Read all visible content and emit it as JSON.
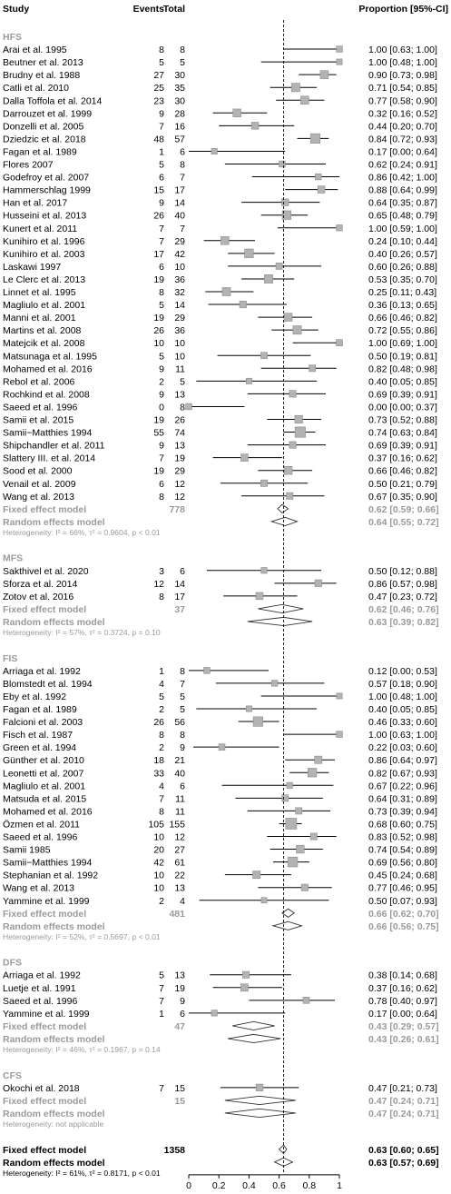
{
  "chart_data": {
    "type": "forest",
    "headers": {
      "study": "Study",
      "events": "Events",
      "total": "Total",
      "estimate": "Proportion [95%-CI]"
    },
    "xaxis": {
      "ticks": [
        "0",
        "0.2",
        "0.4",
        "0.6",
        "0.8",
        "1"
      ],
      "range": [
        0,
        1
      ],
      "reference_line": 0.63
    },
    "groups": [
      {
        "name": "HFS",
        "studies": [
          {
            "study": "Arai et al. 1995",
            "events": "8",
            "total": "8",
            "est": 1.0,
            "lo": 0.63,
            "hi": 1.0,
            "ci": "1.00 [0.63; 1.00]"
          },
          {
            "study": "Beutner et al. 2013",
            "events": "5",
            "total": "5",
            "est": 1.0,
            "lo": 0.48,
            "hi": 1.0,
            "ci": "1.00 [0.48; 1.00]"
          },
          {
            "study": "Brudny et al. 1988",
            "events": "27",
            "total": "30",
            "est": 0.9,
            "lo": 0.73,
            "hi": 0.98,
            "ci": "0.90 [0.73; 0.98]"
          },
          {
            "study": "Catli et al. 2010",
            "events": "25",
            "total": "35",
            "est": 0.71,
            "lo": 0.54,
            "hi": 0.85,
            "ci": "0.71 [0.54; 0.85]"
          },
          {
            "study": "Dalla Toffola et al. 2014",
            "events": "23",
            "total": "30",
            "est": 0.77,
            "lo": 0.58,
            "hi": 0.9,
            "ci": "0.77 [0.58; 0.90]"
          },
          {
            "study": "Darrouzet et al. 1999",
            "events": "9",
            "total": "28",
            "est": 0.32,
            "lo": 0.16,
            "hi": 0.52,
            "ci": "0.32 [0.16; 0.52]"
          },
          {
            "study": "Donzelli et al.  2005",
            "events": "7",
            "total": "16",
            "est": 0.44,
            "lo": 0.2,
            "hi": 0.7,
            "ci": "0.44 [0.20; 0.70]"
          },
          {
            "study": "Dziedzic et al. 2018",
            "events": "48",
            "total": "57",
            "est": 0.84,
            "lo": 0.72,
            "hi": 0.93,
            "ci": "0.84 [0.72; 0.93]"
          },
          {
            "study": "Fagan et al. 1989",
            "events": "1",
            "total": "6",
            "est": 0.17,
            "lo": 0.0,
            "hi": 0.64,
            "ci": "0.17 [0.00; 0.64]"
          },
          {
            "study": "Flores 2007",
            "events": "5",
            "total": "8",
            "est": 0.62,
            "lo": 0.24,
            "hi": 0.91,
            "ci": "0.62 [0.24; 0.91]"
          },
          {
            "study": "Godefroy et al. 2007",
            "events": "6",
            "total": "7",
            "est": 0.86,
            "lo": 0.42,
            "hi": 1.0,
            "ci": "0.86 [0.42; 1.00]"
          },
          {
            "study": "Hammerschlag 1999",
            "events": "15",
            "total": "17",
            "est": 0.88,
            "lo": 0.64,
            "hi": 0.99,
            "ci": "0.88 [0.64; 0.99]"
          },
          {
            "study": "Han et al. 2017",
            "events": "9",
            "total": "14",
            "est": 0.64,
            "lo": 0.35,
            "hi": 0.87,
            "ci": "0.64 [0.35; 0.87]"
          },
          {
            "study": "Husseini et al. 2013",
            "events": "26",
            "total": "40",
            "est": 0.65,
            "lo": 0.48,
            "hi": 0.79,
            "ci": "0.65 [0.48; 0.79]"
          },
          {
            "study": "Kunert et al. 2011",
            "events": "7",
            "total": "7",
            "est": 1.0,
            "lo": 0.59,
            "hi": 1.0,
            "ci": "1.00 [0.59; 1.00]"
          },
          {
            "study": "Kunihiro et al. 1996",
            "events": "7",
            "total": "29",
            "est": 0.24,
            "lo": 0.1,
            "hi": 0.44,
            "ci": "0.24 [0.10; 0.44]"
          },
          {
            "study": "Kunihiro et al. 2003",
            "events": "17",
            "total": "42",
            "est": 0.4,
            "lo": 0.26,
            "hi": 0.57,
            "ci": "0.40 [0.26; 0.57]"
          },
          {
            "study": "Laskawi       1997",
            "events": "6",
            "total": "10",
            "est": 0.6,
            "lo": 0.26,
            "hi": 0.88,
            "ci": "0.60 [0.26; 0.88]"
          },
          {
            "study": "Le Clerc et al. 2013",
            "events": "19",
            "total": "36",
            "est": 0.53,
            "lo": 0.35,
            "hi": 0.7,
            "ci": "0.53 [0.35; 0.70]"
          },
          {
            "study": "Linnet et al. 1995",
            "events": "8",
            "total": "32",
            "est": 0.25,
            "lo": 0.11,
            "hi": 0.43,
            "ci": "0.25 [0.11; 0.43]"
          },
          {
            "study": "Magliulo et al. 2001",
            "events": "5",
            "total": "14",
            "est": 0.36,
            "lo": 0.13,
            "hi": 0.65,
            "ci": "0.36 [0.13; 0.65]"
          },
          {
            "study": "Manni et al. 2001",
            "events": "19",
            "total": "29",
            "est": 0.66,
            "lo": 0.46,
            "hi": 0.82,
            "ci": "0.66 [0.46; 0.82]"
          },
          {
            "study": "Martins et al. 2008",
            "events": "26",
            "total": "36",
            "est": 0.72,
            "lo": 0.55,
            "hi": 0.86,
            "ci": "0.72 [0.55; 0.86]"
          },
          {
            "study": "Matejcik et al. 2008",
            "events": "10",
            "total": "10",
            "est": 1.0,
            "lo": 0.69,
            "hi": 1.0,
            "ci": "1.00 [0.69; 1.00]"
          },
          {
            "study": "Matsunaga et al. 1995",
            "events": "5",
            "total": "10",
            "est": 0.5,
            "lo": 0.19,
            "hi": 0.81,
            "ci": "0.50 [0.19; 0.81]"
          },
          {
            "study": "Mohamed et al. 2016",
            "events": "9",
            "total": "11",
            "est": 0.82,
            "lo": 0.48,
            "hi": 0.98,
            "ci": "0.82 [0.48; 0.98]"
          },
          {
            "study": "Rebol et al. 2006",
            "events": "2",
            "total": "5",
            "est": 0.4,
            "lo": 0.05,
            "hi": 0.85,
            "ci": "0.40 [0.05; 0.85]"
          },
          {
            "study": "Rochkind et al. 2008",
            "events": "9",
            "total": "13",
            "est": 0.69,
            "lo": 0.39,
            "hi": 0.91,
            "ci": "0.69 [0.39; 0.91]"
          },
          {
            "study": "Saeed et al. 1996",
            "events": "0",
            "total": "8",
            "est": 0.0,
            "lo": 0.0,
            "hi": 0.37,
            "ci": "0.00 [0.00; 0.37]"
          },
          {
            "study": "Samii et al. 2015",
            "events": "19",
            "total": "26",
            "est": 0.73,
            "lo": 0.52,
            "hi": 0.88,
            "ci": "0.73 [0.52; 0.88]"
          },
          {
            "study": "Samii−Matthies 1994",
            "events": "55",
            "total": "74",
            "est": 0.74,
            "lo": 0.63,
            "hi": 0.84,
            "ci": "0.74 [0.63; 0.84]"
          },
          {
            "study": "Shipchandler et al. 2011",
            "events": "9",
            "total": "13",
            "est": 0.69,
            "lo": 0.39,
            "hi": 0.91,
            "ci": "0.69 [0.39; 0.91]"
          },
          {
            "study": "Slattery III. et al.  2014",
            "events": "7",
            "total": "19",
            "est": 0.37,
            "lo": 0.16,
            "hi": 0.62,
            "ci": "0.37 [0.16; 0.62]"
          },
          {
            "study": "Sood et al. 2000",
            "events": "19",
            "total": "29",
            "est": 0.66,
            "lo": 0.46,
            "hi": 0.82,
            "ci": "0.66 [0.46; 0.82]"
          },
          {
            "study": "Venail et al. 2009",
            "events": "6",
            "total": "12",
            "est": 0.5,
            "lo": 0.21,
            "hi": 0.79,
            "ci": "0.50 [0.21; 0.79]"
          },
          {
            "study": "Wang et al. 2013",
            "events": "8",
            "total": "12",
            "est": 0.67,
            "lo": 0.35,
            "hi": 0.9,
            "ci": "0.67 [0.35; 0.90]"
          }
        ],
        "fixed": {
          "label": "Fixed effect model",
          "total": "778",
          "est": 0.62,
          "lo": 0.59,
          "hi": 0.66,
          "ci": "0.62 [0.59; 0.66]"
        },
        "random": {
          "label": "Random effects model",
          "est": 0.64,
          "lo": 0.55,
          "hi": 0.72,
          "ci": "0.64 [0.55; 0.72]"
        },
        "heterogeneity": "Heterogeneity: I² = 66%, τ² = 0.9604, p < 0.01"
      },
      {
        "name": "MFS",
        "studies": [
          {
            "study": "Sakthivel et al. 2020",
            "events": "3",
            "total": "6",
            "est": 0.5,
            "lo": 0.12,
            "hi": 0.88,
            "ci": "0.50 [0.12; 0.88]"
          },
          {
            "study": "Sforza et al. 2014",
            "events": "12",
            "total": "14",
            "est": 0.86,
            "lo": 0.57,
            "hi": 0.98,
            "ci": "0.86 [0.57; 0.98]"
          },
          {
            "study": "Zotov et al. 2016",
            "events": "8",
            "total": "17",
            "est": 0.47,
            "lo": 0.23,
            "hi": 0.72,
            "ci": "0.47 [0.23; 0.72]"
          }
        ],
        "fixed": {
          "label": "Fixed effect model",
          "total": "37",
          "est": 0.62,
          "lo": 0.46,
          "hi": 0.76,
          "ci": "0.62 [0.46; 0.76]"
        },
        "random": {
          "label": "Random effects model",
          "est": 0.63,
          "lo": 0.39,
          "hi": 0.82,
          "ci": "0.63 [0.39; 0.82]"
        },
        "heterogeneity": "Heterogeneity: I² = 57%, τ² = 0.3724, p = 0.10"
      },
      {
        "name": "FIS",
        "studies": [
          {
            "study": "Arriaga et al. 1992",
            "events": "1",
            "total": "8",
            "est": 0.12,
            "lo": 0.0,
            "hi": 0.53,
            "ci": "0.12 [0.00; 0.53]"
          },
          {
            "study": "Blomstedt et al. 1994",
            "events": "4",
            "total": "7",
            "est": 0.57,
            "lo": 0.18,
            "hi": 0.9,
            "ci": "0.57 [0.18; 0.90]"
          },
          {
            "study": "Eby et al. 1992",
            "events": "5",
            "total": "5",
            "est": 1.0,
            "lo": 0.48,
            "hi": 1.0,
            "ci": "1.00 [0.48; 1.00]"
          },
          {
            "study": "Fagan et al. 1989",
            "events": "2",
            "total": "5",
            "est": 0.4,
            "lo": 0.05,
            "hi": 0.85,
            "ci": "0.40 [0.05; 0.85]"
          },
          {
            "study": "Falcioni et al. 2003",
            "events": "26",
            "total": "56",
            "est": 0.46,
            "lo": 0.33,
            "hi": 0.6,
            "ci": "0.46 [0.33; 0.60]"
          },
          {
            "study": "Fisch et al. 1987",
            "events": "8",
            "total": "8",
            "est": 1.0,
            "lo": 0.63,
            "hi": 1.0,
            "ci": "1.00 [0.63; 1.00]"
          },
          {
            "study": "Green et al. 1994",
            "events": "2",
            "total": "9",
            "est": 0.22,
            "lo": 0.03,
            "hi": 0.6,
            "ci": "0.22 [0.03; 0.60]"
          },
          {
            "study": "Günther et al. 2010",
            "events": "18",
            "total": "21",
            "est": 0.86,
            "lo": 0.64,
            "hi": 0.97,
            "ci": "0.86 [0.64; 0.97]"
          },
          {
            "study": "Leonetti et al. 2007",
            "events": "33",
            "total": "40",
            "est": 0.82,
            "lo": 0.67,
            "hi": 0.93,
            "ci": "0.82 [0.67; 0.93]"
          },
          {
            "study": "Magliulo et al. 2001",
            "events": "4",
            "total": "6",
            "est": 0.67,
            "lo": 0.22,
            "hi": 0.96,
            "ci": "0.67 [0.22; 0.96]"
          },
          {
            "study": "Matsuda et al. 2015",
            "events": "7",
            "total": "11",
            "est": 0.64,
            "lo": 0.31,
            "hi": 0.89,
            "ci": "0.64 [0.31; 0.89]"
          },
          {
            "study": "Mohamed et al. 2016",
            "events": "8",
            "total": "11",
            "est": 0.73,
            "lo": 0.39,
            "hi": 0.94,
            "ci": "0.73 [0.39; 0.94]"
          },
          {
            "study": "Özmen et al. 2011",
            "events": "105",
            "total": "155",
            "est": 0.68,
            "lo": 0.6,
            "hi": 0.75,
            "ci": "0.68 [0.60; 0.75]"
          },
          {
            "study": "Saeed et al. 1996",
            "events": "10",
            "total": "12",
            "est": 0.83,
            "lo": 0.52,
            "hi": 0.98,
            "ci": "0.83 [0.52; 0.98]"
          },
          {
            "study": "Samii  1985",
            "events": "20",
            "total": "27",
            "est": 0.74,
            "lo": 0.54,
            "hi": 0.89,
            "ci": "0.74 [0.54; 0.89]"
          },
          {
            "study": "Samii−Matthies 1994",
            "events": "42",
            "total": "61",
            "est": 0.69,
            "lo": 0.56,
            "hi": 0.8,
            "ci": "0.69 [0.56; 0.80]"
          },
          {
            "study": "Stephanian et al. 1992",
            "events": "10",
            "total": "22",
            "est": 0.45,
            "lo": 0.24,
            "hi": 0.68,
            "ci": "0.45 [0.24; 0.68]"
          },
          {
            "study": "Wang et al. 2013",
            "events": "10",
            "total": "13",
            "est": 0.77,
            "lo": 0.46,
            "hi": 0.95,
            "ci": "0.77 [0.46; 0.95]"
          },
          {
            "study": "Yammine et al.  1999",
            "events": "2",
            "total": "4",
            "est": 0.5,
            "lo": 0.07,
            "hi": 0.93,
            "ci": "0.50 [0.07; 0.93]"
          }
        ],
        "fixed": {
          "label": "Fixed effect model",
          "total": "481",
          "est": 0.66,
          "lo": 0.62,
          "hi": 0.7,
          "ci": "0.66 [0.62; 0.70]"
        },
        "random": {
          "label": "Random effects model",
          "est": 0.66,
          "lo": 0.56,
          "hi": 0.75,
          "ci": "0.66 [0.56; 0.75]"
        },
        "heterogeneity": "Heterogeneity: I² = 52%, τ² = 0.5697, p < 0.01"
      },
      {
        "name": "DFS",
        "studies": [
          {
            "study": "Arriaga et al. 1992",
            "events": "5",
            "total": "13",
            "est": 0.38,
            "lo": 0.14,
            "hi": 0.68,
            "ci": "0.38 [0.14; 0.68]"
          },
          {
            "study": "Luetje et al. 1991",
            "events": "7",
            "total": "19",
            "est": 0.37,
            "lo": 0.16,
            "hi": 0.62,
            "ci": "0.37 [0.16; 0.62]"
          },
          {
            "study": "Saeed et al. 1996",
            "events": "7",
            "total": "9",
            "est": 0.78,
            "lo": 0.4,
            "hi": 0.97,
            "ci": "0.78 [0.40; 0.97]"
          },
          {
            "study": "Yammine et al.  1999",
            "events": "1",
            "total": "6",
            "est": 0.17,
            "lo": 0.0,
            "hi": 0.64,
            "ci": "0.17 [0.00; 0.64]"
          }
        ],
        "fixed": {
          "label": "Fixed effect model",
          "total": "47",
          "est": 0.43,
          "lo": 0.29,
          "hi": 0.57,
          "ci": "0.43 [0.29; 0.57]"
        },
        "random": {
          "label": "Random effects model",
          "est": 0.43,
          "lo": 0.26,
          "hi": 0.61,
          "ci": "0.43 [0.26; 0.61]"
        },
        "heterogeneity": "Heterogeneity: I² = 46%, τ² = 0.1967, p = 0.14"
      },
      {
        "name": "CFS",
        "studies": [
          {
            "study": "Okochi et al. 2018",
            "events": "7",
            "total": "15",
            "est": 0.47,
            "lo": 0.21,
            "hi": 0.73,
            "ci": "0.47 [0.21; 0.73]"
          }
        ],
        "fixed": {
          "label": "Fixed effect model",
          "total": "15",
          "est": 0.47,
          "lo": 0.24,
          "hi": 0.71,
          "ci": "0.47 [0.24; 0.71]"
        },
        "random": {
          "label": "Random effects model",
          "est": 0.47,
          "lo": 0.24,
          "hi": 0.71,
          "ci": "0.47 [0.24; 0.71]"
        },
        "heterogeneity": "Heterogeneity: not applicable"
      }
    ],
    "overall": {
      "fixed": {
        "label": "Fixed effect model",
        "total": "1358",
        "est": 0.63,
        "lo": 0.6,
        "hi": 0.65,
        "ci": "0.63 [0.60; 0.65]"
      },
      "random": {
        "label": "Random effects model",
        "est": 0.63,
        "lo": 0.57,
        "hi": 0.69,
        "ci": "0.63 [0.57; 0.69]"
      },
      "heterogeneity": "Heterogeneity: I² = 61%, τ² = 0.8171, p < 0.01"
    }
  }
}
